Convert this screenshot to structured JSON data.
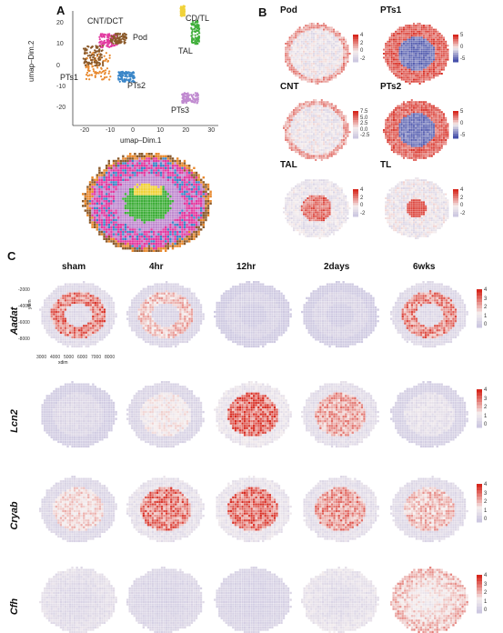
{
  "panel_labels": {
    "a": "A",
    "b": "B",
    "c": "C"
  },
  "panel_a": {
    "xlabel": "umap–Dim.1",
    "ylabel": "umap–Dim.2",
    "x_ticks": [
      "-20",
      "-10",
      "0",
      "10",
      "20",
      "30"
    ],
    "y_ticks": [
      "20",
      "10",
      "0",
      "-10",
      "-20"
    ],
    "clusters": [
      {
        "name": "CNT/DCT",
        "color": "#e8892e"
      },
      {
        "name": "Pod",
        "color": "#8b5a2b"
      },
      {
        "name": "CD/TL",
        "color": "#f0d23a"
      },
      {
        "name": "TAL",
        "color": "#3fae3a"
      },
      {
        "name": "PTs1",
        "color": "#e23aa0"
      },
      {
        "name": "PTs2",
        "color": "#3a86c8"
      },
      {
        "name": "PTs3",
        "color": "#c08ad0"
      }
    ]
  },
  "panel_b": {
    "maps": [
      {
        "title": "Pod",
        "ticks": [
          "4",
          "2",
          "0",
          "-2"
        ],
        "pattern": "cortex-light"
      },
      {
        "title": "PTs1",
        "ticks": [
          "5",
          "0",
          "-5"
        ],
        "pattern": "cortex-strong"
      },
      {
        "title": "CNT",
        "ticks": [
          "7.5",
          "5.0",
          "2.5",
          "0.0",
          "-2.5"
        ],
        "pattern": "cortex-light"
      },
      {
        "title": "PTs2",
        "ticks": [
          "5",
          "0",
          "-5"
        ],
        "pattern": "cortex-strong"
      },
      {
        "title": "TAL",
        "ticks": [
          "4",
          "2",
          "0",
          "-2"
        ],
        "pattern": "medulla"
      },
      {
        "title": "TL",
        "ticks": [
          "4",
          "2",
          "0",
          "-2"
        ],
        "pattern": "center"
      }
    ]
  },
  "panel_c": {
    "conditions": [
      "sham",
      "4hr",
      "12hr",
      "2days",
      "6wks"
    ],
    "genes": [
      {
        "name": "Aadat",
        "ticks": [
          "4",
          "3",
          "2",
          "1",
          "0"
        ],
        "levels": [
          0.85,
          0.6,
          0.1,
          0.12,
          0.8
        ],
        "pattern": "ring"
      },
      {
        "name": "Lcn2",
        "ticks": [
          "4",
          "3",
          "2",
          "1",
          "0"
        ],
        "levels": [
          0.15,
          0.4,
          0.95,
          0.7,
          0.25
        ],
        "pattern": "center"
      },
      {
        "name": "Cryab",
        "ticks": [
          "4",
          "3",
          "2",
          "1",
          "0"
        ],
        "levels": [
          0.5,
          0.85,
          0.9,
          0.75,
          0.6
        ],
        "pattern": "center"
      },
      {
        "name": "Cfh",
        "ticks": [
          "4",
          "3",
          "2",
          "1",
          "0"
        ],
        "levels": [
          0.25,
          0.15,
          0.12,
          0.3,
          0.65
        ],
        "pattern": "diffuse"
      }
    ],
    "sample_axis": {
      "ylabel": "ydim",
      "xlabel": "xdim",
      "y_ticks": [
        "-2000",
        "-4000",
        "-6000",
        "-8000"
      ],
      "x_ticks": [
        "3000",
        "4000",
        "5000",
        "6000",
        "7000",
        "8000"
      ]
    }
  }
}
